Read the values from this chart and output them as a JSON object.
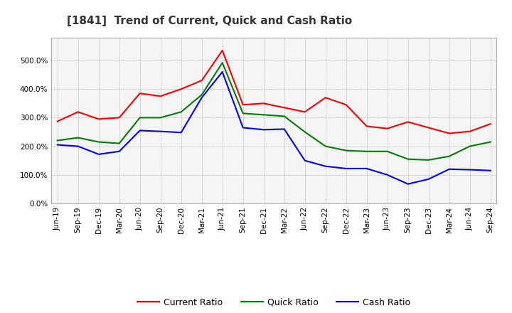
{
  "title": "[1841]  Trend of Current, Quick and Cash Ratio",
  "x_labels": [
    "Jun-19",
    "Sep-19",
    "Dec-19",
    "Mar-20",
    "Jun-20",
    "Sep-20",
    "Dec-20",
    "Mar-21",
    "Jun-21",
    "Sep-21",
    "Dec-21",
    "Mar-22",
    "Jun-22",
    "Sep-22",
    "Dec-22",
    "Mar-23",
    "Jun-23",
    "Sep-23",
    "Dec-23",
    "Mar-24",
    "Jun-24",
    "Sep-24"
  ],
  "current_ratio": [
    2.87,
    3.2,
    2.95,
    3.0,
    3.85,
    3.75,
    4.0,
    4.3,
    5.35,
    3.45,
    3.5,
    3.35,
    3.2,
    3.7,
    3.45,
    2.7,
    2.62,
    2.85,
    2.65,
    2.45,
    2.52,
    2.78
  ],
  "quick_ratio": [
    2.2,
    2.3,
    2.15,
    2.1,
    3.0,
    3.0,
    3.2,
    3.8,
    4.92,
    3.15,
    3.1,
    3.05,
    2.5,
    2.0,
    1.85,
    1.82,
    1.82,
    1.55,
    1.52,
    1.65,
    2.0,
    2.15
  ],
  "cash_ratio": [
    2.05,
    2.0,
    1.72,
    1.82,
    2.55,
    2.52,
    2.48,
    3.7,
    4.6,
    2.65,
    2.58,
    2.6,
    1.5,
    1.3,
    1.22,
    1.22,
    1.0,
    0.68,
    0.85,
    1.2,
    1.18,
    1.15
  ],
  "current_color": "#FF0000",
  "quick_color": "#008000",
  "cash_color": "#0000FF",
  "line_width": 1.5,
  "ylim": [
    0.0,
    5.8
  ],
  "yticks": [
    0.0,
    1.0,
    2.0,
    3.0,
    4.0,
    5.0
  ],
  "background_color": "#FFFFFF",
  "plot_bg_color": "#F5F5F5",
  "grid_color": "#888888",
  "title_fontsize": 11,
  "legend_fontsize": 9,
  "tick_fontsize": 7.5
}
